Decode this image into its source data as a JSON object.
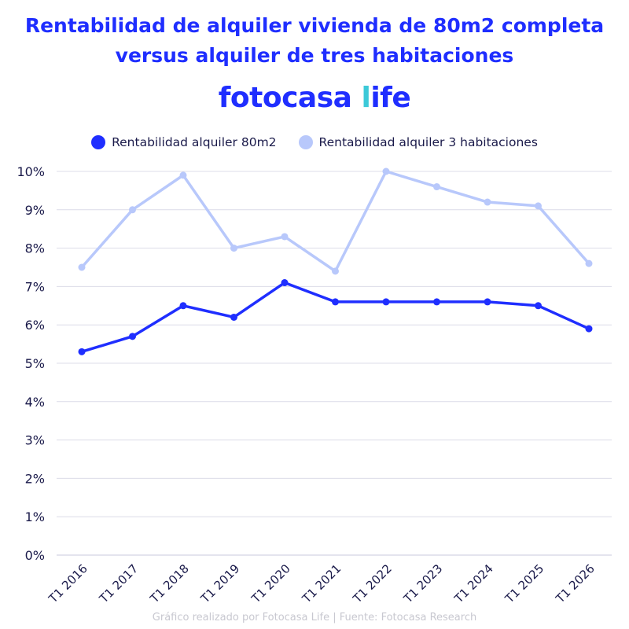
{
  "title_line1": "Rentabilidad de alquiler vivienda de 80m2 completa",
  "title_line2": "versus alquiler de tres habitaciones",
  "logo": {
    "main": "fotocasa",
    "l": "l",
    "rest": "ife"
  },
  "footer": "Gráfico realizado por Fotocasa Life | Fuente: Fotocasa Research",
  "chart_data": {
    "type": "line",
    "title": "Rentabilidad de alquiler vivienda de 80m2 completa versus alquiler de tres habitaciones",
    "categories": [
      "T1 2016",
      "T1 2017",
      "T1 2018",
      "T1 2019",
      "T1 2020",
      "T1 2021",
      "T1 2022",
      "T1 2023",
      "T1 2024",
      "T1 2025",
      "T1 2026"
    ],
    "ylim": [
      0,
      10
    ],
    "yticks": [
      "0%",
      "1%",
      "2%",
      "3%",
      "4%",
      "5%",
      "6%",
      "7%",
      "8%",
      "9%",
      "10%"
    ],
    "grid": true,
    "legend_position": "top",
    "series": [
      {
        "name": "Rentabilidad alquiler 80m2",
        "color": "#1f2eff",
        "values": [
          5.3,
          5.7,
          6.5,
          6.2,
          7.1,
          6.6,
          6.6,
          6.6,
          6.6,
          6.5,
          5.9
        ]
      },
      {
        "name": "Rentabilidad alquiler 3 habitaciones",
        "color": "#b8c8fb",
        "values": [
          7.5,
          9.0,
          9.9,
          8.0,
          8.3,
          7.4,
          10.0,
          9.6,
          9.2,
          9.1,
          7.6
        ]
      }
    ]
  }
}
